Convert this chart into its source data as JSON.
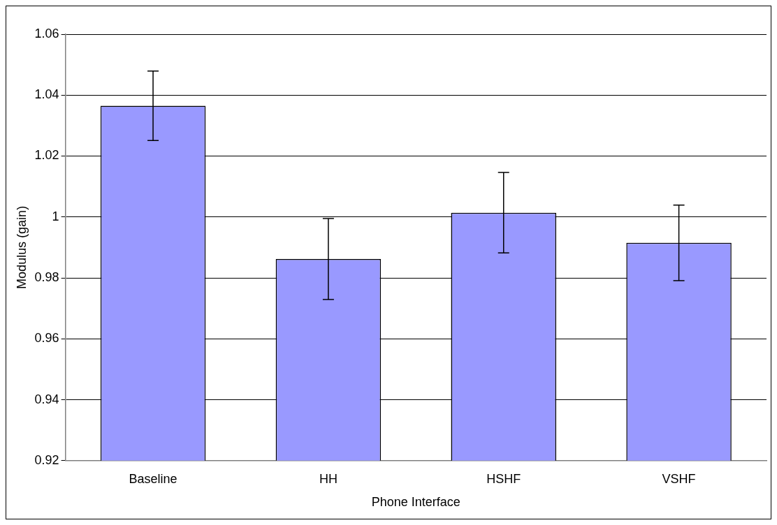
{
  "chart_data": {
    "type": "bar",
    "xlabel": "Phone Interface",
    "ylabel": "Modulus (gain)",
    "categories": [
      "Baseline",
      "HH",
      "HSHF",
      "VSHF"
    ],
    "values": [
      1.0365,
      0.9862,
      1.0014,
      0.9915
    ],
    "errors": [
      0.0114,
      0.0133,
      0.0132,
      0.0124
    ],
    "color": "#9999ff",
    "ylim": [
      0.92,
      1.06
    ],
    "yticks": [
      0.92,
      0.94,
      0.96,
      0.98,
      1,
      1.02,
      1.04,
      1.06
    ],
    "grid": "y",
    "legend": false
  }
}
